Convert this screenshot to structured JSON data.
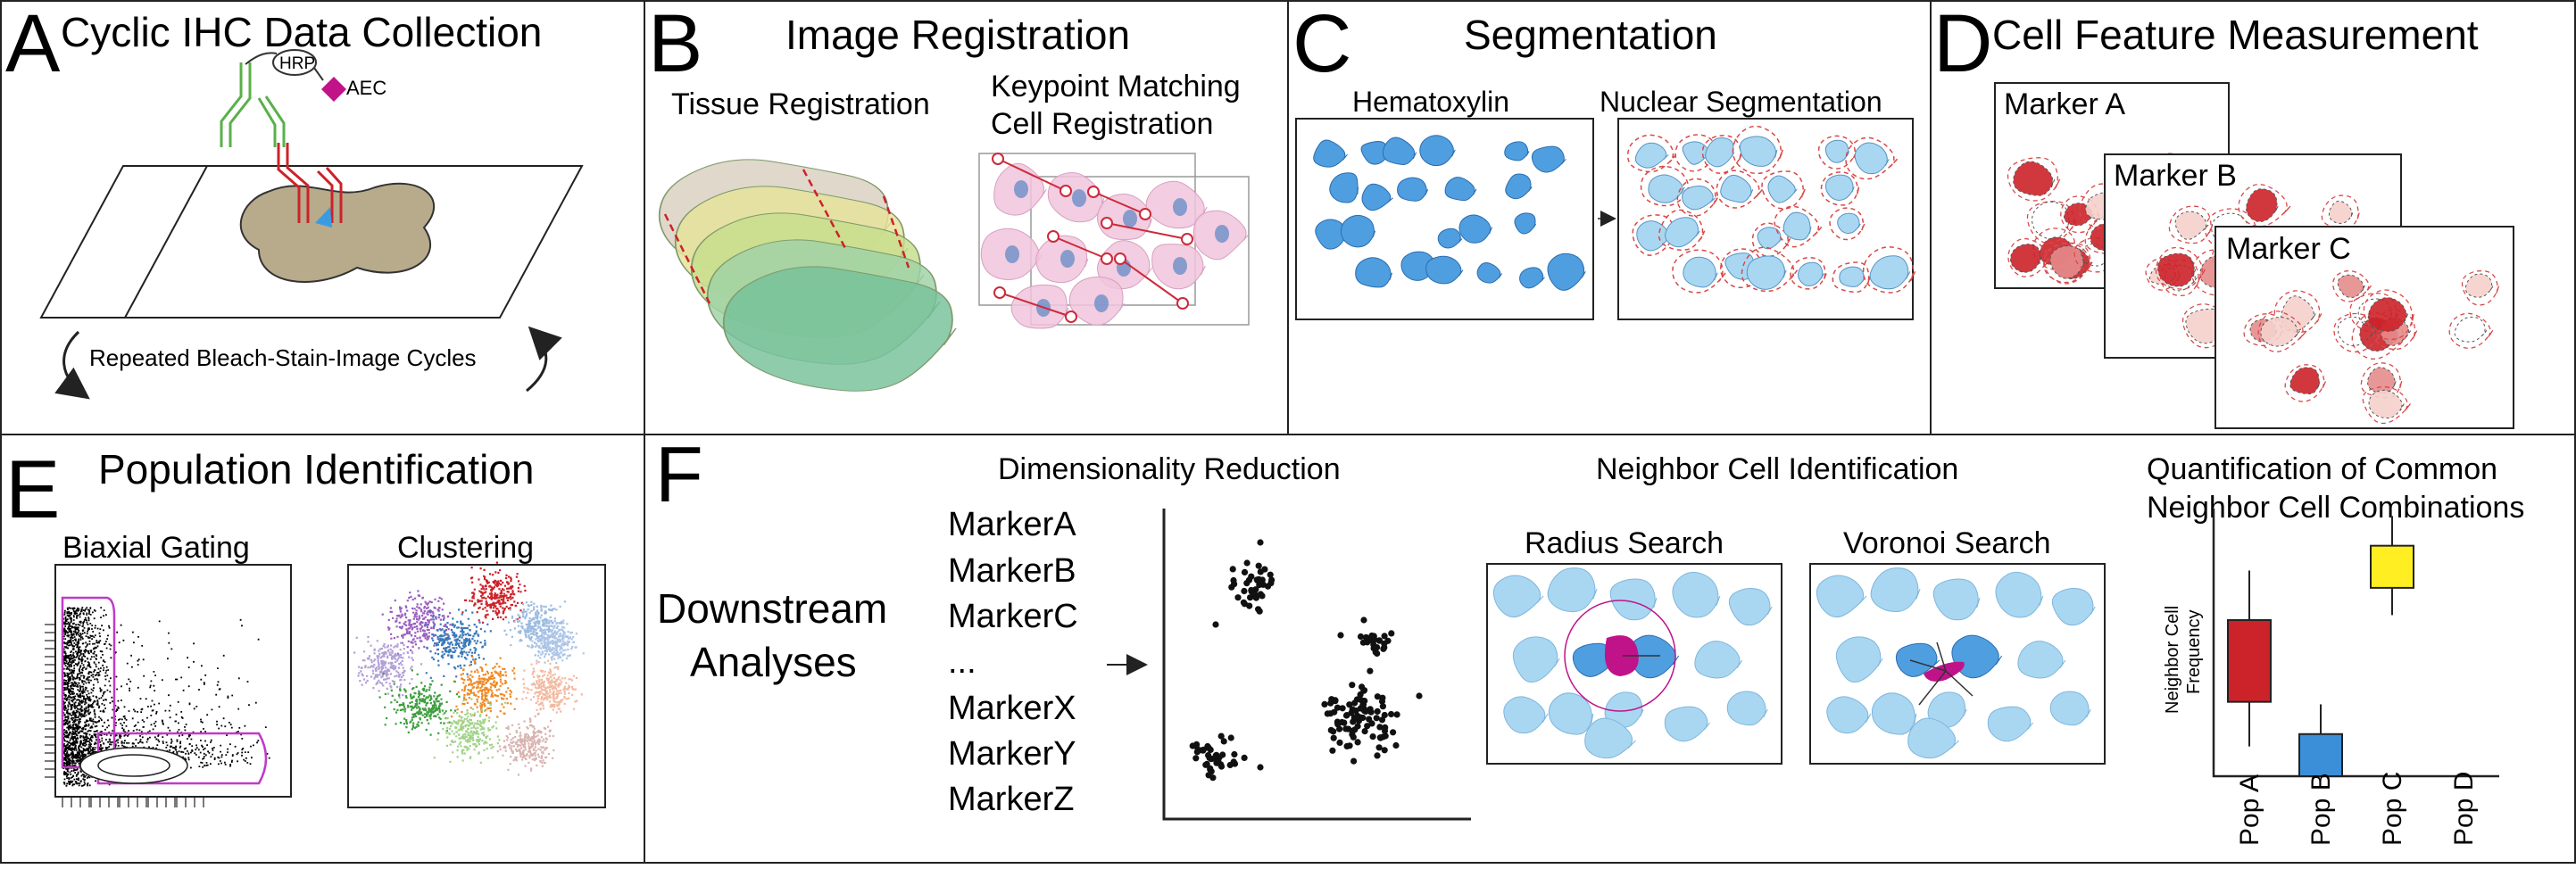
{
  "panels": {
    "a": {
      "letter": "A",
      "title": "Cyclic IHC Data Collection",
      "hrp": "HRP",
      "aec": "AEC",
      "cycle_label": "Repeated Bleach-Stain-Image Cycles"
    },
    "b": {
      "letter": "B",
      "title": "Image Registration",
      "tissue_label": "Tissue Registration",
      "keypoint_label_1": "Keypoint Matching",
      "keypoint_label_2": "Cell Registration"
    },
    "c": {
      "letter": "C",
      "title": "Segmentation",
      "hematoxylin": "Hematoxylin",
      "nuclear": "Nuclear Segmentation"
    },
    "d": {
      "letter": "D",
      "title": "Cell Feature Measurement",
      "marker_a": "Marker A",
      "marker_b": "Marker B",
      "marker_c": "Marker C"
    },
    "e": {
      "letter": "E",
      "title": "Population Identification",
      "biaxial": "Biaxial Gating",
      "clustering": "Clustering"
    },
    "f": {
      "letter": "F",
      "downstream_1": "Downstream",
      "downstream_2": "Analyses",
      "dimred_title": "Dimensionality Reduction",
      "markers": [
        "MarkerA",
        "MarkerB",
        "MarkerC",
        "...",
        "MarkerX",
        "MarkerY",
        "MarkerZ"
      ],
      "neighbor_title": "Neighbor Cell Identification",
      "radius": "Radius Search",
      "voronoi": "Voronoi Search",
      "quant_title_1": "Quantification of Common",
      "quant_title_2": "Neighbor Cell Combinations",
      "ylabel_1": "Neighbor Cell",
      "ylabel_2": "Frequency"
    }
  },
  "chart_data": {
    "type": "box",
    "categories": [
      "Pop A",
      "Pop B",
      "Pop C",
      "Pop D"
    ],
    "boxes": [
      {
        "category": "Pop A",
        "whisker_low": 0.12,
        "q1": 0.3,
        "q3": 0.63,
        "whisker_high": 0.83,
        "color": "#cc2229"
      },
      {
        "category": "Pop B",
        "whisker_low": 0.0,
        "q1": 0.0,
        "q3": 0.17,
        "whisker_high": 0.29,
        "color": "#3b8fd9"
      },
      {
        "category": "Pop C",
        "whisker_low": 0.65,
        "q1": 0.76,
        "q3": 0.93,
        "whisker_high": 1.05,
        "color": "#ffee22"
      }
    ],
    "ylim": [
      0,
      1.08
    ]
  },
  "colors": {
    "frame": "#222222",
    "nucleus_blue": "#4f9ee0",
    "nucleus_light": "#a9d7f2",
    "seg_dash": "#d94848",
    "magenta": "#c0138a",
    "keypoint": "#cc2a3a"
  }
}
